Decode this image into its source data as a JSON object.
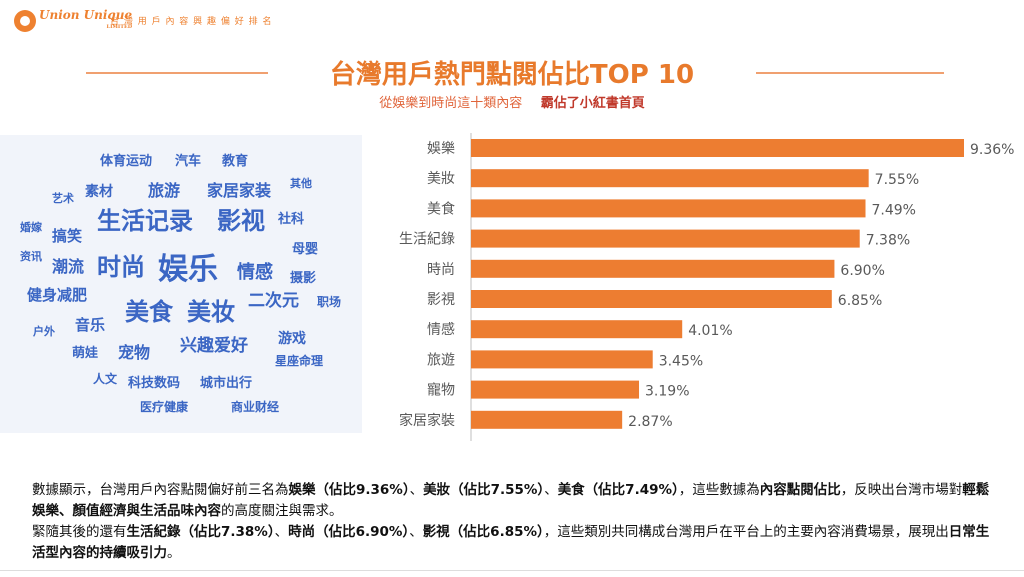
{
  "brand": {
    "logo_text": "Union Unique",
    "logo_sub": "LIMITED",
    "tagline": "台 灣 用 戶 內 容 興 趣 偏 好 排 名"
  },
  "header": {
    "title": "台灣用戶熱門點閱佔比TOP 10",
    "subtitle_a": "從娛樂到時尚這十類內容",
    "subtitle_b": "霸佔了小紅書首頁"
  },
  "word_cloud": [
    {
      "text": "体育运动",
      "size": 13
    },
    {
      "text": "汽车",
      "size": 13
    },
    {
      "text": "教育",
      "size": 13
    },
    {
      "text": "艺术",
      "size": 11
    },
    {
      "text": "素材",
      "size": 14
    },
    {
      "text": "旅游",
      "size": 16
    },
    {
      "text": "家居家装",
      "size": 16
    },
    {
      "text": "其他",
      "size": 11
    },
    {
      "text": "婚嫁",
      "size": 11
    },
    {
      "text": "生活记录",
      "size": 24
    },
    {
      "text": "影视",
      "size": 24
    },
    {
      "text": "社科",
      "size": 13
    },
    {
      "text": "搞笑",
      "size": 15
    },
    {
      "text": "母婴",
      "size": 13
    },
    {
      "text": "资讯",
      "size": 11
    },
    {
      "text": "潮流",
      "size": 16
    },
    {
      "text": "时尚",
      "size": 24
    },
    {
      "text": "娱乐",
      "size": 30
    },
    {
      "text": "情感",
      "size": 18
    },
    {
      "text": "摄影",
      "size": 13
    },
    {
      "text": "健身减肥",
      "size": 15
    },
    {
      "text": "二次元",
      "size": 17
    },
    {
      "text": "职场",
      "size": 12
    },
    {
      "text": "美食",
      "size": 24
    },
    {
      "text": "美妆",
      "size": 24
    },
    {
      "text": "户外",
      "size": 11
    },
    {
      "text": "音乐",
      "size": 15
    },
    {
      "text": "游戏",
      "size": 14
    },
    {
      "text": "萌娃",
      "size": 13
    },
    {
      "text": "宠物",
      "size": 16
    },
    {
      "text": "兴趣爱好",
      "size": 17
    },
    {
      "text": "星座命理",
      "size": 12
    },
    {
      "text": "人文",
      "size": 12
    },
    {
      "text": "科技数码",
      "size": 13
    },
    {
      "text": "城市出行",
      "size": 13
    },
    {
      "text": "医疗健康",
      "size": 12
    },
    {
      "text": "商业财经",
      "size": 12
    }
  ],
  "chart_data": {
    "type": "bar",
    "orientation": "horizontal",
    "categories": [
      "娛樂",
      "美妝",
      "美食",
      "生活紀錄",
      "時尚",
      "影視",
      "情感",
      "旅遊",
      "寵物",
      "家居家裝"
    ],
    "values": [
      9.36,
      7.55,
      7.49,
      7.38,
      6.9,
      6.85,
      4.01,
      3.45,
      3.19,
      2.87
    ],
    "labels": [
      "9.36%",
      "7.55%",
      "7.49%",
      "7.38%",
      "6.90%",
      "6.85%",
      "4.01%",
      "3.45%",
      "3.19%",
      "2.87%"
    ],
    "bar_color": "#ed7d31",
    "title": "",
    "xlabel": "",
    "ylabel": "",
    "xlim": [
      0,
      9.36
    ],
    "grid": false
  },
  "description": {
    "p1_a": "數據顯示，台灣用戶內容點閱偏好前三名為",
    "p1_b": "娛樂（佔比9.36%）",
    "p1_c": "、",
    "p1_d": "美妝（佔比7.55%）",
    "p1_e": "、",
    "p1_f": "美食（佔比7.49%）",
    "p1_g": "，這些數據為",
    "p1_h": "內容點閱佔比",
    "p1_i": "，反映出台灣市場對",
    "p1_j": "輕鬆娛樂、顏值經濟與生活品味內容",
    "p1_k": "的高度關注與需求。",
    "p2_a": "緊隨其後的還有",
    "p2_b": "生活紀錄（佔比7.38%）",
    "p2_c": "、",
    "p2_d": "時尚（佔比6.90%）",
    "p2_e": "、",
    "p2_f": "影視（佔比6.85%）",
    "p2_g": "，這些類別共同構成台灣用戶在平台上的主要內容消費場景，展現出",
    "p2_h": "日常生活型內容的持續吸引力",
    "p2_i": "。"
  }
}
